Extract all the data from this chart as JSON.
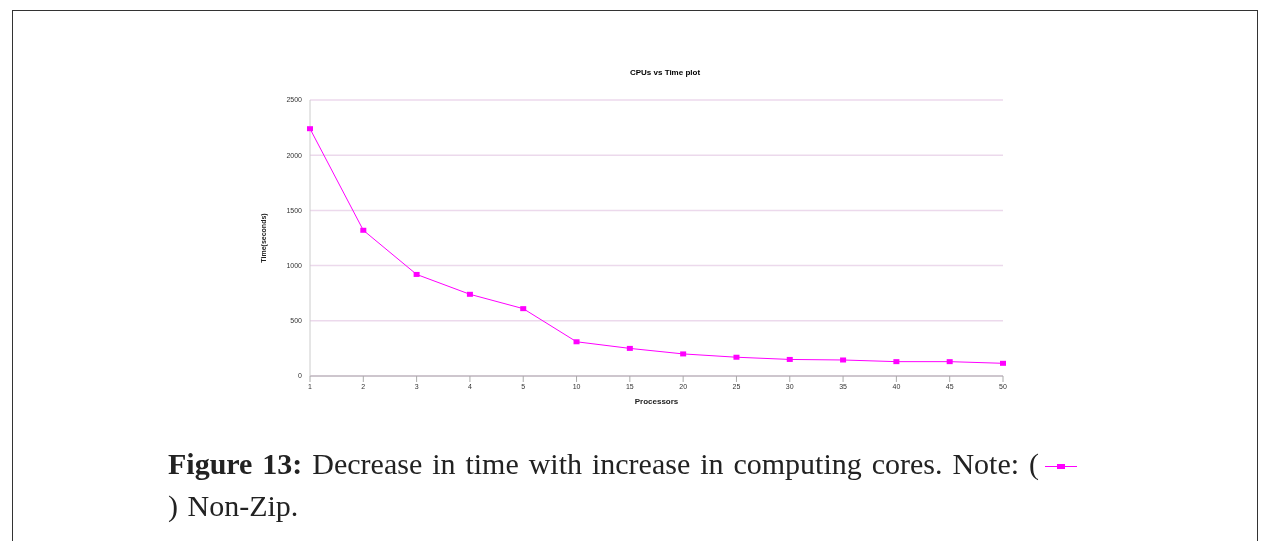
{
  "chart_data": {
    "type": "line",
    "title": "CPUs vs Time plot",
    "xlabel": "Processors",
    "ylabel": "Time(seconds)",
    "categories": [
      "1",
      "2",
      "3",
      "4",
      "5",
      "10",
      "15",
      "20",
      "25",
      "30",
      "35",
      "40",
      "45",
      "50"
    ],
    "series": [
      {
        "name": "Non-Zip.",
        "color": "#ff00ff",
        "values": [
          2240,
          1320,
          920,
          740,
          610,
          310,
          250,
          200,
          170,
          150,
          145,
          130,
          130,
          115
        ]
      }
    ],
    "ylim": [
      0,
      2500
    ],
    "yticks": [
      0,
      500,
      1000,
      1500,
      2000,
      2500
    ],
    "grid": "y",
    "marker": "square",
    "line_style": "solid",
    "legend": "bottom",
    "annotations": [
      "Figure 13:",
      "Decrease in time with increase in computing cores. Note: (",
      ")"
    ]
  }
}
